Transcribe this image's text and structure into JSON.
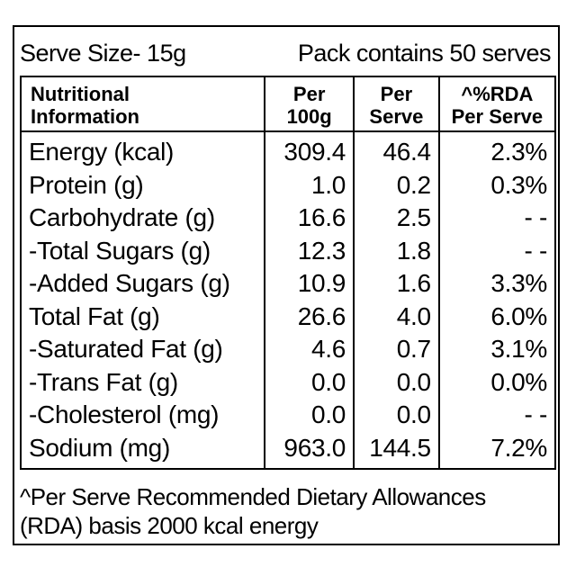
{
  "header": {
    "serve_size": "Serve Size- 15g",
    "pack": "Pack contains 50 serves"
  },
  "table": {
    "columns": [
      [
        "Nutritional",
        "Information"
      ],
      [
        "Per",
        "100g"
      ],
      [
        "Per",
        "Serve"
      ],
      [
        "^%RDA",
        "Per Serve"
      ]
    ],
    "rows": [
      [
        "Energy (kcal)",
        "309.4",
        "46.4",
        "2.3%"
      ],
      [
        "Protein (g)",
        "1.0",
        "0.2",
        "0.3%"
      ],
      [
        "Carbohydrate (g)",
        "16.6",
        "2.5",
        "- -"
      ],
      [
        "-Total Sugars (g)",
        "12.3",
        "1.8",
        "- -"
      ],
      [
        "-Added Sugars (g)",
        "10.9",
        "1.6",
        "3.3%"
      ],
      [
        "Total Fat (g)",
        "26.6",
        "4.0",
        "6.0%"
      ],
      [
        "-Saturated Fat (g)",
        "4.6",
        "0.7",
        "3.1%"
      ],
      [
        "-Trans Fat (g)",
        "0.0",
        "0.0",
        "0.0%"
      ],
      [
        "-Cholesterol (mg)",
        "0.0",
        "0.0",
        "- -"
      ],
      [
        "Sodium (mg)",
        "963.0",
        "144.5",
        "7.2%"
      ]
    ]
  },
  "footer": [
    "^Per Serve Recommended Dietary Allowances",
    "(RDA) basis 2000 kcal energy"
  ]
}
